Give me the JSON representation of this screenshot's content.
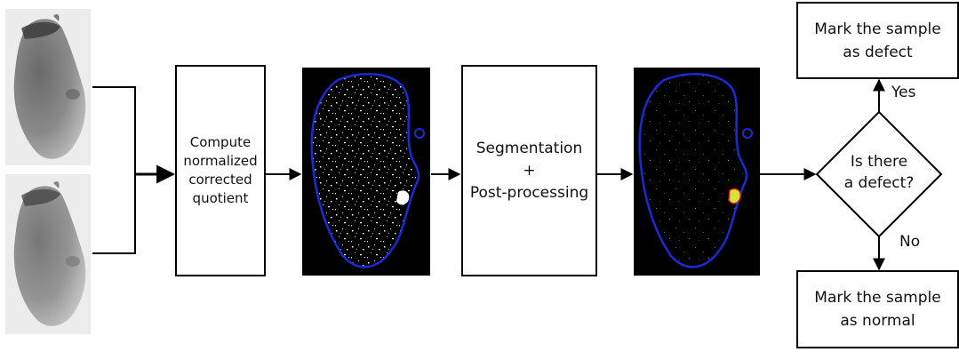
{
  "diagram": {
    "compute_box": {
      "line1": "Compute",
      "line2": "normalized",
      "line3": "corrected",
      "line4": "quotient"
    },
    "segmentation_box": {
      "line1": "Segmentation",
      "line2": "+",
      "line3": "Post-processing"
    },
    "decision": {
      "line1": "Is there",
      "line2": "a defect?"
    },
    "yes_label": "Yes",
    "no_label": "No",
    "defect_box": {
      "line1": "Mark the sample",
      "line2": "as defect"
    },
    "normal_box": {
      "line1": "Mark the sample",
      "line2": "as normal"
    },
    "colors": {
      "outline_blue": "#1a2bd6",
      "defect_yellow": "#d8e03a",
      "defect_red": "#d11e1e"
    }
  }
}
